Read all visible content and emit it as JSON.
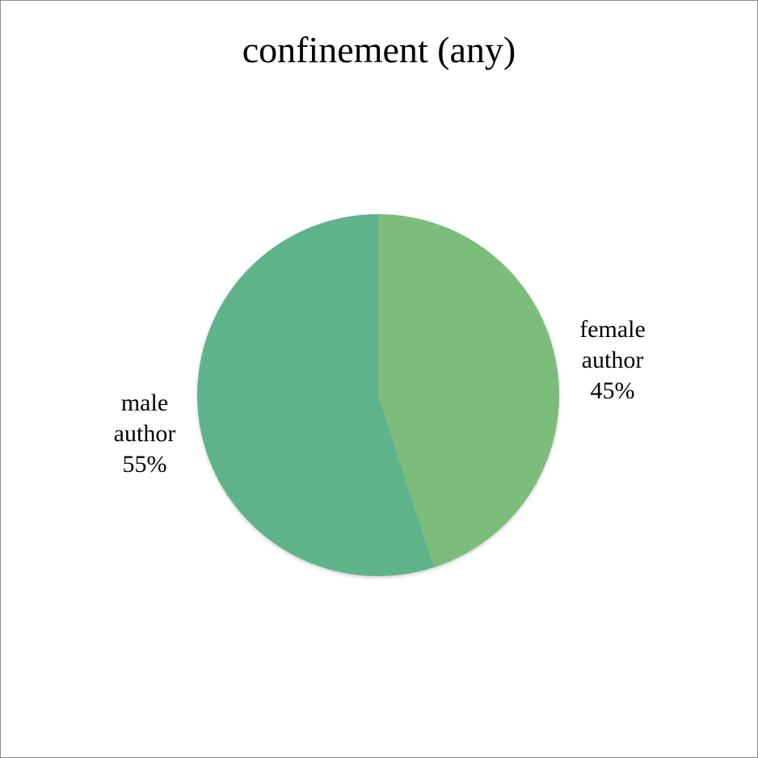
{
  "chart_data": {
    "type": "pie",
    "title": "confinement (any)",
    "slices": [
      {
        "category_line1": "female",
        "category_line2": "author",
        "value": 45,
        "value_label": "45%",
        "color": "#7bbd7b"
      },
      {
        "category_line1": "male",
        "category_line2": "author",
        "value": 55,
        "value_label": "55%",
        "color": "#5fb38b"
      }
    ],
    "legend": "none",
    "start_angle_deg": 0,
    "direction": "clockwise"
  }
}
